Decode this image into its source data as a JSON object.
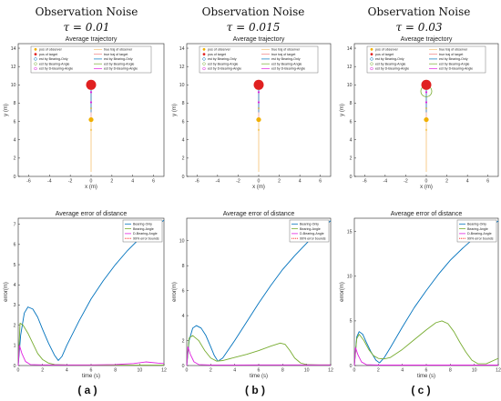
{
  "headers": [
    {
      "title": "Observation Noise",
      "tau": "τ = 0.01"
    },
    {
      "title": "Observation Noise",
      "tau": "τ = 0.015"
    },
    {
      "title": "Observation Noise",
      "tau": "τ = 0.03"
    }
  ],
  "captions": [
    "( a )",
    "( b )",
    "( c )"
  ],
  "colors": {
    "bearing_only": "#0072bd",
    "bearing_angle": "#77ac30",
    "d_bearing_angle": "#e020e0",
    "error_bounds": "#ff2020",
    "observer": "#f0b000",
    "target": "#e02020",
    "true_traj_observer": "#f5c070",
    "true_traj_target": "#f08080"
  },
  "chart_data": [
    {
      "type": "scatter",
      "title": "Average trajectory",
      "xlabel": "x (m)",
      "ylabel": "y (m)",
      "xlim": [
        -7,
        7
      ],
      "ylim": [
        0,
        14.5
      ],
      "xticks": [
        -6,
        -4,
        -2,
        0,
        2,
        4,
        6
      ],
      "yticks": [
        0,
        2,
        4,
        6,
        8,
        10,
        12,
        14
      ],
      "legend": {
        "placement": "top",
        "left": [
          "pos of observer",
          "pos of target",
          "est by Bearing-Only",
          "est by Bearing-Angle",
          "est by D-Bearing-Angle"
        ],
        "right": [
          "true traj of observer",
          "true traj of target",
          "est by Bearing-Only",
          "est by Bearing-Angle",
          "est by D-Bearing-Angle"
        ]
      },
      "observer_traj": {
        "x": 0,
        "y": [
          0.5,
          6.2
        ]
      },
      "observer_pos": [
        0,
        6.2
      ],
      "target_pos": [
        0,
        10
      ],
      "observer_marks": [
        [
          0,
          5.0
        ],
        [
          0,
          6.2
        ],
        [
          0,
          7.3
        ]
      ],
      "target_marks": [
        [
          0,
          8.1
        ],
        [
          0,
          9.2
        ]
      ],
      "est_bearing_only_circle": null,
      "est_bearing_angle_circle": null
    },
    {
      "type": "scatter",
      "title": "Average trajectory",
      "xlabel": "x (m)",
      "ylabel": "y (m)",
      "xlim": [
        -7,
        7
      ],
      "ylim": [
        0,
        14.5
      ],
      "xticks": [
        -6,
        -4,
        -2,
        0,
        2,
        4,
        6
      ],
      "yticks": [
        0,
        2,
        4,
        6,
        8,
        10,
        12,
        14
      ],
      "legend": {
        "placement": "top",
        "left": [
          "pos of observer",
          "pos of target",
          "est by Bearing-Only",
          "est by Bearing-Angle",
          "est by D-Bearing-Angle"
        ],
        "right": [
          "true traj of observer",
          "true traj of target",
          "est by Bearing-Only",
          "est by Bearing-Angle",
          "est by D-Bearing-Angle"
        ]
      },
      "observer_traj": {
        "x": 0,
        "y": [
          0.5,
          6.2
        ]
      },
      "observer_pos": [
        0,
        6.2
      ],
      "target_pos": [
        0,
        10
      ],
      "observer_marks": [
        [
          0,
          5.0
        ],
        [
          0,
          6.2
        ],
        [
          0,
          7.3
        ]
      ],
      "target_marks": [
        [
          0,
          8.1
        ],
        [
          0,
          9.2
        ]
      ],
      "est_bearing_only_circle": null,
      "est_bearing_angle_circle": null
    },
    {
      "type": "scatter",
      "title": "Average trajectory",
      "xlabel": "x (m)",
      "ylabel": "y (m)",
      "xlim": [
        -7,
        7
      ],
      "ylim": [
        0,
        14.5
      ],
      "xticks": [
        -6,
        -4,
        -2,
        0,
        2,
        4,
        6
      ],
      "yticks": [
        0,
        2,
        4,
        6,
        8,
        10,
        12,
        14
      ],
      "legend": {
        "placement": "top",
        "left": [
          "pos of observer",
          "pos of target",
          "est by Bearing-Only",
          "est by Bearing-Angle",
          "est by D-Bearing-Angle"
        ],
        "right": [
          "true traj of observer",
          "true traj of target",
          "est by Bearing-Only",
          "est by Bearing-Angle",
          "est by D-Bearing-Angle"
        ]
      },
      "observer_traj": {
        "x": 0,
        "y": [
          0.5,
          6.2
        ]
      },
      "observer_pos": [
        0,
        6.2
      ],
      "target_pos": [
        0,
        10
      ],
      "observer_marks": [
        [
          0,
          5.0
        ],
        [
          0,
          6.2
        ],
        [
          0,
          7.3
        ]
      ],
      "target_marks": [
        [
          0,
          8.1
        ],
        [
          0,
          9.2
        ]
      ],
      "est_bearing_only_circle": null,
      "est_bearing_angle_circle": [
        0,
        9.3
      ]
    },
    {
      "type": "line",
      "title": "Average error of distance",
      "xlabel": "time (s)",
      "ylabel": "error(m)",
      "xlim": [
        0,
        12
      ],
      "ylim": [
        0,
        7.3
      ],
      "xticks": [
        0,
        2,
        4,
        6,
        8,
        10,
        12
      ],
      "yticks": [
        0,
        1,
        2,
        3,
        4,
        5,
        6,
        7
      ],
      "legend": {
        "placement": "top-right",
        "entries": [
          "Bearing-Only",
          "Bearing-Angle",
          "D-Bearing-Angle",
          "99% error bounds"
        ]
      },
      "series": [
        {
          "name": "Bearing-Only",
          "x": [
            0,
            0.2,
            0.5,
            0.8,
            1.2,
            1.6,
            2.0,
            2.5,
            3.0,
            3.3,
            3.6,
            4.0,
            5.0,
            6.0,
            7.0,
            8.0,
            9.0,
            10.0,
            11.0,
            12.0
          ],
          "y": [
            0,
            1.5,
            2.6,
            2.9,
            2.8,
            2.4,
            1.8,
            1.1,
            0.5,
            0.25,
            0.45,
            1.0,
            2.2,
            3.3,
            4.2,
            5.0,
            5.7,
            6.3,
            6.8,
            7.2
          ]
        },
        {
          "name": "Bearing-Angle",
          "x": [
            0,
            0.15,
            0.4,
            0.8,
            1.2,
            1.6,
            2.0,
            2.5,
            3.0,
            4.0,
            6.0,
            8.0,
            10.0,
            12.0
          ],
          "y": [
            0,
            2.1,
            2.0,
            1.6,
            1.1,
            0.6,
            0.3,
            0.12,
            0.05,
            0.03,
            0.02,
            0.02,
            0.02,
            0.02
          ]
        },
        {
          "name": "D-Bearing-Angle",
          "x": [
            0,
            0.1,
            0.3,
            0.6,
            1.0,
            2.0,
            4.0,
            6.0,
            8.0,
            9.5,
            10.5,
            11.5,
            12.0
          ],
          "y": [
            0,
            1.0,
            0.6,
            0.2,
            0.05,
            0.03,
            0.03,
            0.03,
            0.05,
            0.1,
            0.18,
            0.12,
            0.1
          ]
        }
      ]
    },
    {
      "type": "line",
      "title": "Average error of distance",
      "xlabel": "time (s)",
      "ylabel": "error(m)",
      "xlim": [
        0,
        12
      ],
      "ylim": [
        0,
        11.8
      ],
      "xticks": [
        0,
        2,
        4,
        6,
        8,
        10,
        12
      ],
      "yticks": [
        0,
        2,
        4,
        6,
        8,
        10
      ],
      "legend": {
        "placement": "top-right",
        "entries": [
          "Bearing-Only",
          "Bearing-Angle",
          "D-Bearing-Angle",
          "99% error bounds"
        ]
      },
      "series": [
        {
          "name": "Bearing-Only",
          "x": [
            0,
            0.2,
            0.5,
            0.8,
            1.2,
            1.6,
            2.0,
            2.3,
            2.6,
            3.0,
            4.0,
            5.0,
            6.0,
            7.0,
            8.0,
            9.0,
            10.0,
            11.0,
            12.0
          ],
          "y": [
            0,
            2.0,
            3.0,
            3.2,
            3.0,
            2.4,
            1.5,
            0.8,
            0.35,
            0.6,
            2.0,
            3.5,
            5.0,
            6.4,
            7.7,
            8.8,
            9.8,
            10.8,
            11.6
          ]
        },
        {
          "name": "Bearing-Angle",
          "x": [
            0,
            0.2,
            0.5,
            1.0,
            1.5,
            2.0,
            2.5,
            3.0,
            4.0,
            5.0,
            6.0,
            7.0,
            7.8,
            8.2,
            8.6,
            9.0,
            9.5,
            10.0,
            11.0,
            12.0
          ],
          "y": [
            0,
            2.2,
            2.4,
            2.0,
            1.2,
            0.6,
            0.35,
            0.4,
            0.65,
            0.9,
            1.2,
            1.55,
            1.8,
            1.7,
            1.2,
            0.6,
            0.2,
            0.08,
            0.05,
            0.05
          ]
        },
        {
          "name": "D-Bearing-Angle",
          "x": [
            0,
            0.1,
            0.3,
            0.6,
            1.0,
            2.0,
            4.0,
            6.0,
            8.0,
            10.0,
            12.0
          ],
          "y": [
            0,
            1.5,
            0.9,
            0.3,
            0.08,
            0.04,
            0.04,
            0.05,
            0.05,
            0.05,
            0.05
          ]
        }
      ]
    },
    {
      "type": "line",
      "title": "Average error of distance",
      "xlabel": "time (s)",
      "ylabel": "error(m)",
      "xlim": [
        0,
        12
      ],
      "ylim": [
        0,
        16.5
      ],
      "xticks": [
        0,
        2,
        4,
        6,
        8,
        10,
        12
      ],
      "yticks": [
        0,
        5,
        10,
        15
      ],
      "legend": {
        "placement": "top-right",
        "entries": [
          "Bearing-Only",
          "Bearing-Angle",
          "D-Bearing-Angle",
          "99% error bounds"
        ]
      },
      "series": [
        {
          "name": "Bearing-Only",
          "x": [
            0,
            0.2,
            0.4,
            0.7,
            1.0,
            1.4,
            1.8,
            2.1,
            2.5,
            3.0,
            4.0,
            5.0,
            6.0,
            7.0,
            8.0,
            9.0,
            10.0,
            11.0,
            12.0
          ],
          "y": [
            0,
            3.2,
            3.8,
            3.5,
            2.6,
            1.5,
            0.6,
            0.3,
            0.9,
            2.0,
            4.3,
            6.5,
            8.4,
            10.2,
            11.8,
            13.1,
            14.3,
            15.3,
            16.2
          ]
        },
        {
          "name": "Bearing-Angle",
          "x": [
            0,
            0.2,
            0.4,
            0.8,
            1.2,
            1.6,
            2.0,
            2.5,
            3.0,
            4.0,
            5.0,
            6.0,
            6.8,
            7.3,
            7.8,
            8.3,
            8.8,
            9.3,
            9.8,
            10.3,
            11.0,
            12.0
          ],
          "y": [
            0,
            3.0,
            3.5,
            2.8,
            1.8,
            1.1,
            0.8,
            0.75,
            0.9,
            1.8,
            2.9,
            4.0,
            4.8,
            5.0,
            4.7,
            3.8,
            2.6,
            1.5,
            0.6,
            0.2,
            0.2,
            0.8
          ]
        },
        {
          "name": "D-Bearing-Angle",
          "x": [
            0,
            0.1,
            0.3,
            0.6,
            1.0,
            2.0,
            4.0,
            6.0,
            8.0,
            10.0,
            12.0
          ],
          "y": [
            0,
            2.0,
            1.2,
            0.4,
            0.1,
            0.05,
            0.05,
            0.05,
            0.05,
            0.05,
            0.05
          ]
        }
      ]
    }
  ]
}
